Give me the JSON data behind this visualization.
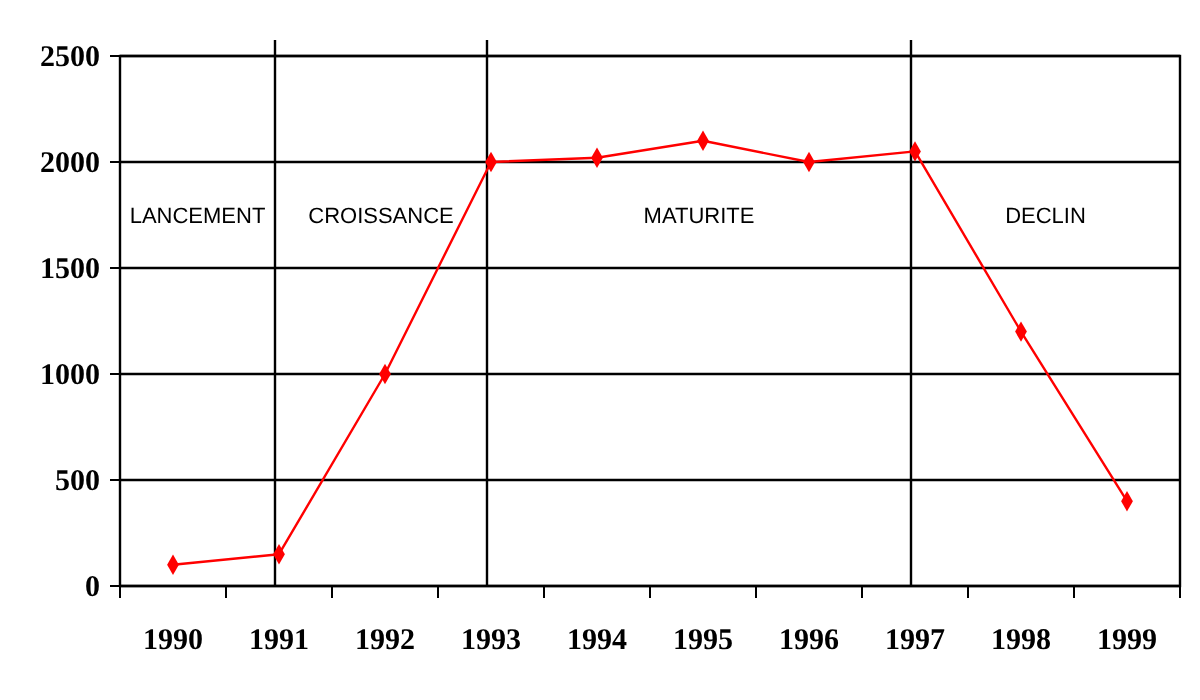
{
  "chart_data": {
    "type": "line",
    "categories": [
      "1990",
      "1991",
      "1992",
      "1993",
      "1994",
      "1995",
      "1996",
      "1997",
      "1998",
      "1999"
    ],
    "series": [
      {
        "color": "#ff0000",
        "values": [
          100,
          150,
          1000,
          2000,
          2020,
          2100,
          2000,
          2050,
          1200,
          400
        ]
      }
    ],
    "ylim": [
      0,
      2500
    ],
    "yticks": [
      0,
      500,
      1000,
      1500,
      2000,
      2500
    ],
    "grid": "y",
    "marker": "diamond",
    "line_style": "solid",
    "ref_lines": [
      {
        "axis": "x",
        "value": "1991",
        "color": "#000000"
      },
      {
        "axis": "x",
        "value": "1993",
        "color": "#000000"
      },
      {
        "axis": "x",
        "value": "1997",
        "color": "#000000"
      }
    ],
    "annotations": [
      "LANCEMENT",
      "CROISSANCE",
      "MATURITE",
      "DECLIN"
    ]
  }
}
